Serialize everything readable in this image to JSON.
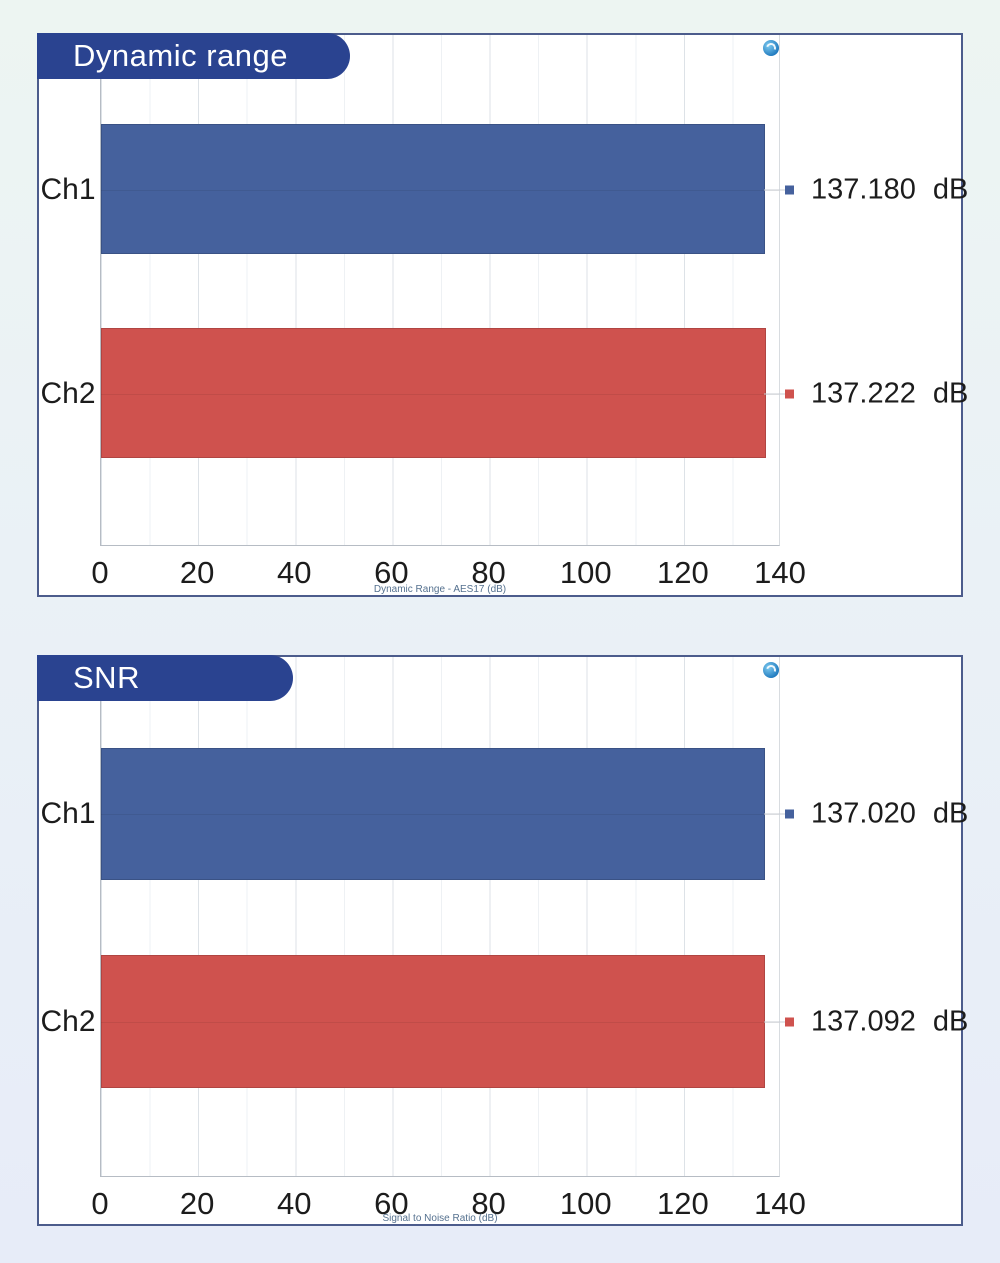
{
  "branding": {
    "logo_icon": "ap-logo",
    "logo_color": "#2f9bd6"
  },
  "style_colors": {
    "title_pill": "#2a4390",
    "panel_border": "#4c5c8c",
    "ch1_blue": "#45619d",
    "ch2_red": "#cf524e"
  },
  "chart_data": [
    {
      "type": "bar",
      "orientation": "horizontal",
      "title": "Dynamic range",
      "categories": [
        "Ch1",
        "Ch2"
      ],
      "values": [
        137.18,
        137.222
      ],
      "value_labels": [
        "137.180 dB",
        "137.222 dB"
      ],
      "series_colors": [
        "#45619d",
        "#cf524e"
      ],
      "xlabel": "Dynamic Range - AES17 (dB)",
      "xlim": [
        0,
        140
      ],
      "x_ticks": [
        0,
        20,
        40,
        60,
        80,
        100,
        120,
        140
      ],
      "minor_grid_step": 10,
      "grid": true,
      "legend": "none"
    },
    {
      "type": "bar",
      "orientation": "horizontal",
      "title": "SNR",
      "categories": [
        "Ch1",
        "Ch2"
      ],
      "values": [
        137.02,
        137.092
      ],
      "value_labels": [
        "137.020 dB",
        "137.092 dB"
      ],
      "series_colors": [
        "#45619d",
        "#cf524e"
      ],
      "xlabel": "Signal to Noise Ratio (dB)",
      "xlim": [
        0,
        140
      ],
      "x_ticks": [
        0,
        20,
        40,
        60,
        80,
        100,
        120,
        140
      ],
      "minor_grid_step": 10,
      "grid": true,
      "legend": "none"
    }
  ]
}
